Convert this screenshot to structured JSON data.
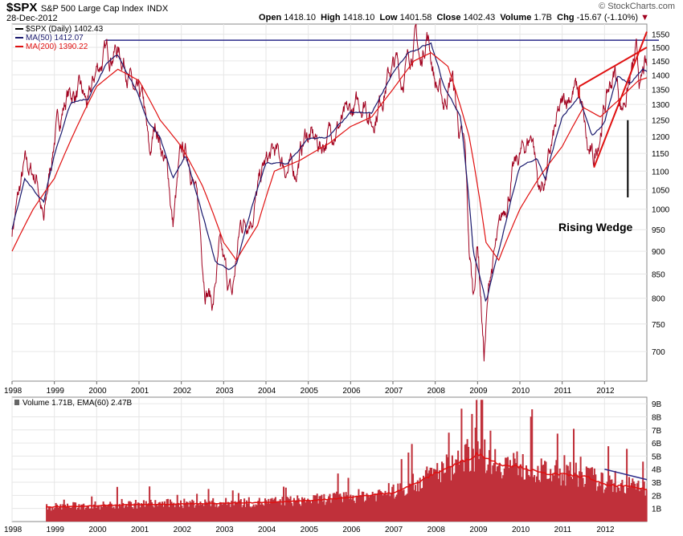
{
  "header": {
    "ticker": "$SPX",
    "name": "S&P 500 Large Cap Index",
    "exchange": "INDX",
    "date": "28-Dec-2012",
    "open_label": "Open",
    "open": "1418.10",
    "high_label": "High",
    "high": "1418.10",
    "low_label": "Low",
    "low": "1401.58",
    "close_label": "Close",
    "close": "1402.43",
    "volume_label": "Volume",
    "volume": "1.7B",
    "chg_label": "Chg",
    "chg": "-15.67 (-1.10%)",
    "brand": "© StockCharts.com"
  },
  "colors": {
    "price": "#a0001e",
    "ma50": "#1a1a6e",
    "ma200": "#e01010",
    "grid": "#e6e6e6",
    "trend": "#2a2a8a",
    "wedge": "#e01010",
    "volume": "#c0303a",
    "ema": "#e01010"
  },
  "chart_data": [
    {
      "type": "line",
      "title": "$SPX S&P 500 Large Cap Index",
      "legend": [
        {
          "label": "$SPX (Daily) 1402.43",
          "color": "#000000"
        },
        {
          "label": "MA(50) 1412.07",
          "color": "#1a1a6e"
        },
        {
          "label": "MA(200) 1390.22",
          "color": "#e01010"
        }
      ],
      "ylim": [
        650,
        1590
      ],
      "yticks": [
        700,
        750,
        800,
        850,
        900,
        950,
        1000,
        1050,
        1100,
        1150,
        1200,
        1250,
        1300,
        1350,
        1400,
        1450,
        1500,
        1550
      ],
      "xlim": [
        1998.0,
        2013.0
      ],
      "xticks": [
        1998,
        1999,
        2000,
        2001,
        2002,
        2003,
        2004,
        2005,
        2006,
        2007,
        2008,
        2009,
        2010,
        2011,
        2012
      ],
      "series": [
        {
          "name": "$SPX",
          "values": [
            [
              1998.0,
              950
            ],
            [
              1998.3,
              1110
            ],
            [
              1998.6,
              1080
            ],
            [
              1998.75,
              960
            ],
            [
              1999.0,
              1200
            ],
            [
              1999.3,
              1330
            ],
            [
              1999.6,
              1340
            ],
            [
              1999.8,
              1290
            ],
            [
              2000.0,
              1420
            ],
            [
              2000.2,
              1470
            ],
            [
              2000.45,
              1500
            ],
            [
              2000.7,
              1440
            ],
            [
              2000.9,
              1320
            ],
            [
              2001.1,
              1300
            ],
            [
              2001.25,
              1130
            ],
            [
              2001.4,
              1240
            ],
            [
              2001.7,
              1080
            ],
            [
              2001.8,
              960
            ],
            [
              2002.0,
              1150
            ],
            [
              2002.2,
              1140
            ],
            [
              2002.4,
              990
            ],
            [
              2002.55,
              840
            ],
            [
              2002.75,
              790
            ],
            [
              2002.9,
              900
            ],
            [
              2003.1,
              830
            ],
            [
              2003.2,
              800
            ],
            [
              2003.4,
              960
            ],
            [
              2003.7,
              1000
            ],
            [
              2003.95,
              1110
            ],
            [
              2004.2,
              1150
            ],
            [
              2004.5,
              1110
            ],
            [
              2004.7,
              1100
            ],
            [
              2004.95,
              1210
            ],
            [
              2005.3,
              1170
            ],
            [
              2005.6,
              1230
            ],
            [
              2005.9,
              1250
            ],
            [
              2006.35,
              1320
            ],
            [
              2006.5,
              1240
            ],
            [
              2006.95,
              1420
            ],
            [
              2007.1,
              1440
            ],
            [
              2007.2,
              1380
            ],
            [
              2007.55,
              1550
            ],
            [
              2007.65,
              1420
            ],
            [
              2007.8,
              1565
            ],
            [
              2008.0,
              1380
            ],
            [
              2008.2,
              1300
            ],
            [
              2008.4,
              1400
            ],
            [
              2008.55,
              1230
            ],
            [
              2008.7,
              1150
            ],
            [
              2008.8,
              900
            ],
            [
              2008.9,
              800
            ],
            [
              2009.0,
              930
            ],
            [
              2009.15,
              690
            ],
            [
              2009.3,
              850
            ],
            [
              2009.5,
              930
            ],
            [
              2009.8,
              1080
            ],
            [
              2010.0,
              1140
            ],
            [
              2010.3,
              1210
            ],
            [
              2010.45,
              1050
            ],
            [
              2010.6,
              1080
            ],
            [
              2010.9,
              1250
            ],
            [
              2011.1,
              1320
            ],
            [
              2011.3,
              1360
            ],
            [
              2011.45,
              1300
            ],
            [
              2011.6,
              1150
            ],
            [
              2011.75,
              1120
            ],
            [
              2011.95,
              1260
            ],
            [
              2012.1,
              1350
            ],
            [
              2012.25,
              1410
            ],
            [
              2012.4,
              1290
            ],
            [
              2012.6,
              1380
            ],
            [
              2012.75,
              1460
            ],
            [
              2012.85,
              1350
            ],
            [
              2012.95,
              1420
            ],
            [
              2013.0,
              1402
            ]
          ]
        },
        {
          "name": "MA(50)",
          "values": [
            [
              1998.0,
              950
            ],
            [
              1998.3,
              1080
            ],
            [
              1998.75,
              1020
            ],
            [
              1999.0,
              1150
            ],
            [
              1999.4,
              1310
            ],
            [
              1999.8,
              1320
            ],
            [
              2000.2,
              1430
            ],
            [
              2000.5,
              1470
            ],
            [
              2000.9,
              1360
            ],
            [
              2001.2,
              1250
            ],
            [
              2001.5,
              1200
            ],
            [
              2001.8,
              1080
            ],
            [
              2002.1,
              1140
            ],
            [
              2002.4,
              1020
            ],
            [
              2002.8,
              880
            ],
            [
              2003.1,
              860
            ],
            [
              2003.3,
              870
            ],
            [
              2003.6,
              980
            ],
            [
              2004.0,
              1120
            ],
            [
              2004.5,
              1120
            ],
            [
              2005.0,
              1190
            ],
            [
              2005.5,
              1200
            ],
            [
              2006.0,
              1270
            ],
            [
              2006.5,
              1270
            ],
            [
              2007.0,
              1410
            ],
            [
              2007.4,
              1480
            ],
            [
              2007.7,
              1500
            ],
            [
              2007.9,
              1510
            ],
            [
              2008.2,
              1360
            ],
            [
              2008.6,
              1260
            ],
            [
              2008.9,
              900
            ],
            [
              2009.2,
              790
            ],
            [
              2009.5,
              900
            ],
            [
              2010.0,
              1110
            ],
            [
              2010.4,
              1140
            ],
            [
              2010.6,
              1080
            ],
            [
              2011.0,
              1260
            ],
            [
              2011.4,
              1320
            ],
            [
              2011.7,
              1200
            ],
            [
              2012.0,
              1240
            ],
            [
              2012.3,
              1390
            ],
            [
              2012.6,
              1370
            ],
            [
              2012.9,
              1420
            ],
            [
              2013.0,
              1412
            ]
          ]
        },
        {
          "name": "MA(200)",
          "values": [
            [
              1998.0,
              900
            ],
            [
              1998.5,
              1000
            ],
            [
              1999.0,
              1080
            ],
            [
              1999.5,
              1220
            ],
            [
              2000.0,
              1360
            ],
            [
              2000.5,
              1420
            ],
            [
              2001.0,
              1380
            ],
            [
              2001.5,
              1250
            ],
            [
              2002.0,
              1170
            ],
            [
              2002.5,
              1060
            ],
            [
              2003.0,
              920
            ],
            [
              2003.3,
              880
            ],
            [
              2003.8,
              960
            ],
            [
              2004.2,
              1100
            ],
            [
              2004.8,
              1130
            ],
            [
              2005.5,
              1180
            ],
            [
              2006.0,
              1230
            ],
            [
              2006.5,
              1260
            ],
            [
              2007.0,
              1350
            ],
            [
              2007.5,
              1450
            ],
            [
              2007.9,
              1480
            ],
            [
              2008.3,
              1430
            ],
            [
              2008.8,
              1200
            ],
            [
              2009.2,
              920
            ],
            [
              2009.5,
              880
            ],
            [
              2010.0,
              1000
            ],
            [
              2010.5,
              1090
            ],
            [
              2011.0,
              1170
            ],
            [
              2011.5,
              1290
            ],
            [
              2011.9,
              1260
            ],
            [
              2012.3,
              1310
            ],
            [
              2012.8,
              1380
            ],
            [
              2013.0,
              1390
            ]
          ]
        }
      ],
      "annotations": {
        "horizontal_line": 1527,
        "wedge_label": "Rising Wedge",
        "wedge_upper": [
          [
            2011.4,
            1360
          ],
          [
            2013.0,
            1500
          ]
        ],
        "wedge_lower": [
          [
            2011.75,
            1110
          ],
          [
            2013.0,
            1560
          ]
        ]
      }
    },
    {
      "type": "bar",
      "title": "Volume",
      "legend": [
        {
          "label": "Volume 1.71B, EMA(60) 2.47B"
        }
      ],
      "ylim": [
        0,
        9500
      ],
      "yticks": [
        [
          1000,
          "1B"
        ],
        [
          2000,
          "2B"
        ],
        [
          3000,
          "3B"
        ],
        [
          4000,
          "4B"
        ],
        [
          5000,
          "5B"
        ],
        [
          6000,
          "6B"
        ],
        [
          7000,
          "7B"
        ],
        [
          8000,
          "8B"
        ],
        [
          9000,
          "9B"
        ]
      ],
      "xlim": [
        1998.0,
        2013.0
      ],
      "xticks": [
        1998,
        1999,
        2000,
        2001,
        2002,
        2003,
        2004,
        2005,
        2006,
        2007,
        2008,
        2009,
        2010,
        2011,
        2012
      ],
      "volume_start": 1998.8,
      "ema_profile": [
        [
          1998.8,
          1100
        ],
        [
          2000.0,
          1200
        ],
        [
          2001.0,
          1300
        ],
        [
          2002.0,
          1350
        ],
        [
          2003.0,
          1400
        ],
        [
          2004.0,
          1450
        ],
        [
          2005.0,
          1600
        ],
        [
          2006.0,
          1850
        ],
        [
          2007.0,
          2200
        ],
        [
          2007.6,
          3000
        ],
        [
          2008.0,
          3700
        ],
        [
          2008.8,
          4800
        ],
        [
          2009.0,
          5200
        ],
        [
          2009.5,
          4400
        ],
        [
          2010.0,
          4200
        ],
        [
          2010.5,
          3700
        ],
        [
          2011.0,
          3600
        ],
        [
          2011.6,
          3400
        ],
        [
          2012.0,
          2800
        ],
        [
          2012.5,
          2700
        ],
        [
          2013.0,
          2470
        ]
      ],
      "trend_line": [
        [
          2012.0,
          4000
        ],
        [
          2013.0,
          3200
        ]
      ]
    }
  ]
}
